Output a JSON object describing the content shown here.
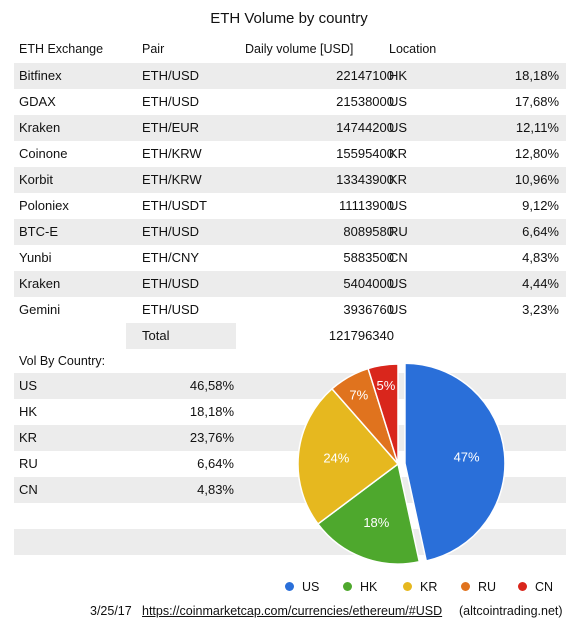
{
  "title": "ETH Volume by country",
  "headers": {
    "exchange": "ETH Exchange",
    "pair": "Pair",
    "volume": "Daily volume  [USD]",
    "location": "Location"
  },
  "rows": [
    {
      "exchange": "Bitfinex",
      "pair": "ETH/USD",
      "volume": "22147100",
      "location": "HK",
      "share": "18,18%"
    },
    {
      "exchange": "GDAX",
      "pair": "ETH/USD",
      "volume": "21538000",
      "location": "US",
      "share": "17,68%"
    },
    {
      "exchange": "Kraken",
      "pair": "ETH/EUR",
      "volume": "14744200",
      "location": "US",
      "share": "12,11%"
    },
    {
      "exchange": "Coinone",
      "pair": "ETH/KRW",
      "volume": "15595400",
      "location": "KR",
      "share": "12,80%"
    },
    {
      "exchange": "Korbit",
      "pair": "ETH/KRW",
      "volume": "13343900",
      "location": "KR",
      "share": "10,96%"
    },
    {
      "exchange": "Poloniex",
      "pair": "ETH/USDT",
      "volume": "11113900",
      "location": "US",
      "share": "9,12%"
    },
    {
      "exchange": "BTC-E",
      "pair": "ETH/USD",
      "volume": "8089580",
      "location": "RU",
      "share": "6,64%"
    },
    {
      "exchange": "Yunbi",
      "pair": "ETH/CNY",
      "volume": "5883500",
      "location": "CN",
      "share": "4,83%"
    },
    {
      "exchange": "Kraken",
      "pair": "ETH/USD",
      "volume": "5404000",
      "location": "US",
      "share": "4,44%"
    },
    {
      "exchange": "Gemini",
      "pair": "ETH/USD",
      "volume": "3936760",
      "location": "US",
      "share": "3,23%"
    }
  ],
  "total": {
    "label": "Total",
    "value": "121796340"
  },
  "by_country_title": "Vol By Country:",
  "by_country": [
    {
      "country": "US",
      "share": "46,58%"
    },
    {
      "country": "HK",
      "share": "18,18%"
    },
    {
      "country": "KR",
      "share": "23,76%"
    },
    {
      "country": "RU",
      "share": "6,64%"
    },
    {
      "country": "CN",
      "share": "4,83%"
    }
  ],
  "footer": {
    "date": "3/25/17",
    "link": "https://coinmarketcap.com/currencies/ethereum/#USD",
    "credit": "(altcointrading.net)"
  },
  "chart_data": {
    "type": "pie",
    "title": "",
    "series": [
      {
        "name": "US",
        "value": 46.58,
        "label": "47%",
        "color": "#2a6fd9"
      },
      {
        "name": "HK",
        "value": 18.18,
        "label": "18%",
        "color": "#4ea82d"
      },
      {
        "name": "KR",
        "value": 23.76,
        "label": "24%",
        "color": "#e6b81f"
      },
      {
        "name": "RU",
        "value": 6.64,
        "label": "7%",
        "color": "#e0731e"
      },
      {
        "name": "CN",
        "value": 4.83,
        "label": "5%",
        "color": "#d9261c"
      }
    ],
    "legend_position": "bottom",
    "exploded_slice": "US"
  }
}
